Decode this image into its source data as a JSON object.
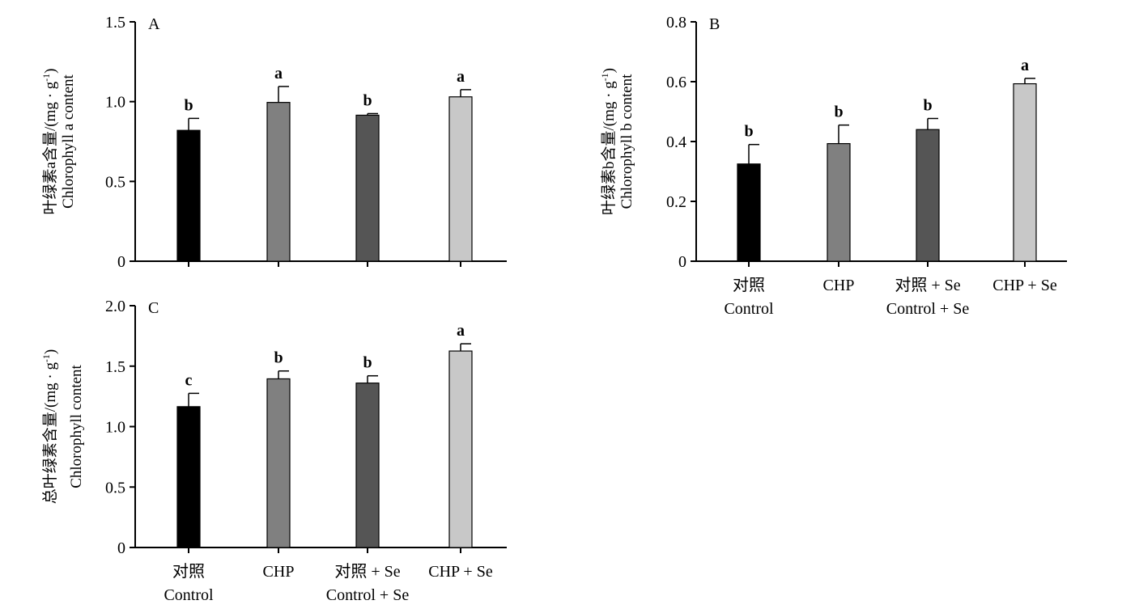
{
  "chart_data": [
    {
      "type": "bar",
      "panel_label": "A",
      "ylabel": [
        "叶绿素a含量/(mg · g⁻¹)",
        "Chlorophyll a content"
      ],
      "categories": [
        "",
        "",
        "",
        ""
      ],
      "values": [
        0.82,
        0.995,
        0.915,
        1.03
      ],
      "errors": [
        0.075,
        0.1,
        0.01,
        0.045
      ],
      "significance": [
        "b",
        "a",
        "b",
        "a"
      ],
      "ylim": [
        0,
        1.5
      ],
      "yticks": [
        0,
        0.5,
        1.0,
        1.5
      ],
      "ytick_labels": [
        "0",
        "0.5",
        "1.0",
        "1.5"
      ],
      "bar_colors": [
        "#000000",
        "#808080",
        "#555555",
        "#c8c8c8"
      ]
    },
    {
      "type": "bar",
      "panel_label": "B",
      "ylabel": [
        "叶绿素b含量/(mg · g⁻¹)",
        "Chlorophyll b content"
      ],
      "categories": [
        [
          "对照",
          "Control"
        ],
        [
          "CHP"
        ],
        [
          "对照 + Se",
          "Control + Se"
        ],
        [
          "CHP + Se"
        ]
      ],
      "values": [
        0.325,
        0.393,
        0.44,
        0.593
      ],
      "errors": [
        0.065,
        0.062,
        0.037,
        0.018
      ],
      "significance": [
        "b",
        "b",
        "b",
        "a"
      ],
      "ylim": [
        0,
        0.8
      ],
      "yticks": [
        0,
        0.2,
        0.4,
        0.6,
        0.8
      ],
      "ytick_labels": [
        "0",
        "0.2",
        "0.4",
        "0.6",
        "0.8"
      ],
      "bar_colors": [
        "#000000",
        "#808080",
        "#555555",
        "#c8c8c8"
      ]
    },
    {
      "type": "bar",
      "panel_label": "C",
      "ylabel": [
        "总叶绿素含量/(mg · g⁻¹)",
        "Chlorophyll content"
      ],
      "categories": [
        [
          "对照",
          "Control"
        ],
        [
          "CHP"
        ],
        [
          "对照 + Se",
          "Control + Se"
        ],
        [
          "CHP + Se"
        ]
      ],
      "values": [
        1.165,
        1.395,
        1.36,
        1.625
      ],
      "errors": [
        0.11,
        0.065,
        0.06,
        0.06
      ],
      "significance": [
        "c",
        "b",
        "b",
        "a"
      ],
      "ylim": [
        0,
        2.0
      ],
      "yticks": [
        0,
        0.5,
        1.0,
        1.5,
        2.0
      ],
      "ytick_labels": [
        "0",
        "0.5",
        "1.0",
        "1.5",
        "2.0"
      ],
      "bar_colors": [
        "#000000",
        "#808080",
        "#555555",
        "#c8c8c8"
      ]
    }
  ]
}
